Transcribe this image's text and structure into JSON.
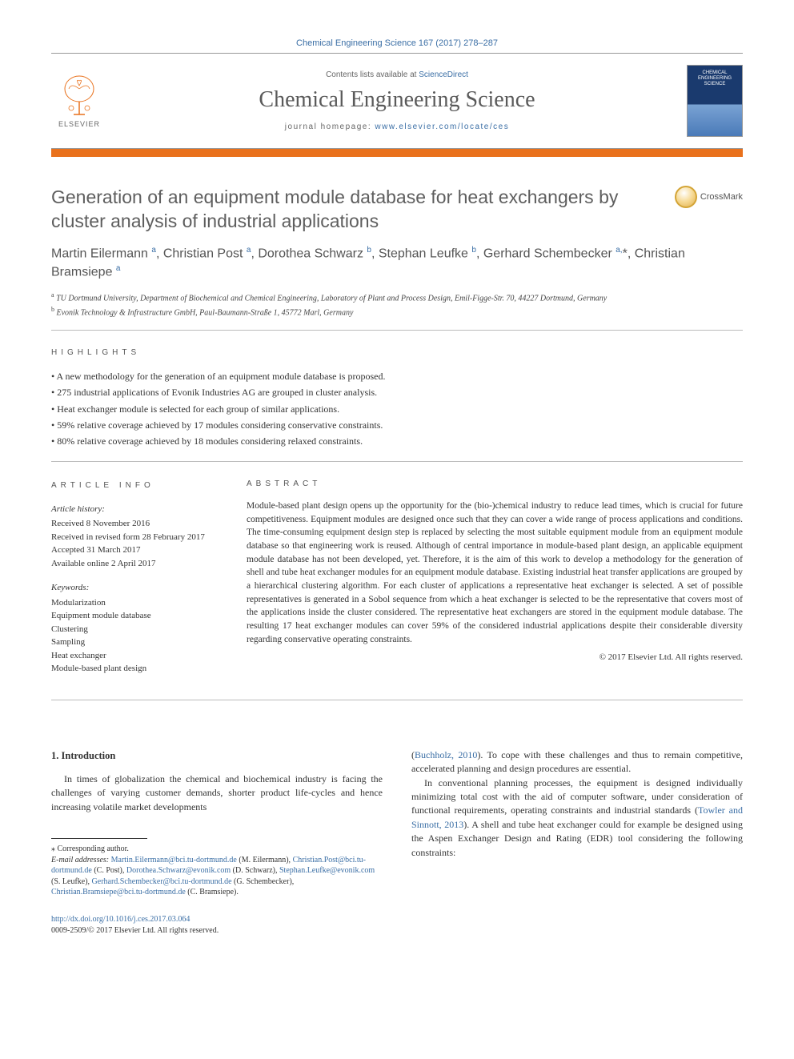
{
  "citation": "Chemical Engineering Science 167 (2017) 278–287",
  "header": {
    "contents_prefix": "Contents lists available at ",
    "contents_link": "ScienceDirect",
    "journal_name": "Chemical Engineering Science",
    "homepage_prefix": "journal homepage: ",
    "homepage_url": "www.elsevier.com/locate/ces",
    "elsevier_label": "ELSEVIER",
    "cover_text": "CHEMICAL ENGINEERING SCIENCE"
  },
  "crossmark_label": "CrossMark",
  "title": "Generation of an equipment module database for heat exchangers by cluster analysis of industrial applications",
  "authors_html": "Martin Eilermann <sup>a</sup>, Christian Post <sup>a</sup>, Dorothea Schwarz <sup>b</sup>, Stephan Leufke <sup>b</sup>, Gerhard Schembecker <sup>a,</sup><span class='star'>*</span>, Christian Bramsiepe <sup>a</sup>",
  "affiliations": {
    "a": "TU Dortmund University, Department of Biochemical and Chemical Engineering, Laboratory of Plant and Process Design, Emil-Figge-Str. 70, 44227 Dortmund, Germany",
    "b": "Evonik Technology & Infrastructure GmbH, Paul-Baumann-Straße 1, 45772 Marl, Germany"
  },
  "labels": {
    "highlights": "highlights",
    "article_info": "article info",
    "abstract": "abstract"
  },
  "highlights": [
    "A new methodology for the generation of an equipment module database is proposed.",
    "275 industrial applications of Evonik Industries AG are grouped in cluster analysis.",
    "Heat exchanger module is selected for each group of similar applications.",
    "59% relative coverage achieved by 17 modules considering conservative constraints.",
    "80% relative coverage achieved by 18 modules considering relaxed constraints."
  ],
  "article_info": {
    "history_label": "Article history:",
    "history": [
      "Received 8 November 2016",
      "Received in revised form 28 February 2017",
      "Accepted 31 March 2017",
      "Available online 2 April 2017"
    ],
    "keywords_label": "Keywords:",
    "keywords": [
      "Modularization",
      "Equipment module database",
      "Clustering",
      "Sampling",
      "Heat exchanger",
      "Module-based plant design"
    ]
  },
  "abstract": "Module-based plant design opens up the opportunity for the (bio-)chemical industry to reduce lead times, which is crucial for future competitiveness. Equipment modules are designed once such that they can cover a wide range of process applications and conditions. The time-consuming equipment design step is replaced by selecting the most suitable equipment module from an equipment module database so that engineering work is reused. Although of central importance in module-based plant design, an applicable equipment module database has not been developed, yet. Therefore, it is the aim of this work to develop a methodology for the generation of shell and tube heat exchanger modules for an equipment module database. Existing industrial heat transfer applications are grouped by a hierarchical clustering algorithm. For each cluster of applications a representative heat exchanger is selected. A set of possible representatives is generated in a Sobol sequence from which a heat exchanger is selected to be the representative that covers most of the applications inside the cluster considered. The representative heat exchangers are stored in the equipment module database. The resulting 17 heat exchanger modules can cover 59% of the considered industrial applications despite their considerable diversity regarding conservative operating constraints.",
  "copyright": "© 2017 Elsevier Ltd. All rights reserved.",
  "body": {
    "intro_heading": "1. Introduction",
    "left_p1": "In times of globalization the chemical and biochemical industry is facing the challenges of varying customer demands, shorter product life-cycles and hence increasing volatile market developments",
    "right_p1_a": "(",
    "right_p1_cite": "Buchholz, 2010",
    "right_p1_b": "). To cope with these challenges and thus to remain competitive, accelerated planning and design procedures are essential.",
    "right_p2_a": "In conventional planning processes, the equipment is designed individually minimizing total cost with the aid of computer software, under consideration of functional requirements, operating constraints and industrial standards (",
    "right_p2_cite": "Towler and Sinnott, 2013",
    "right_p2_b": "). A shell and tube heat exchanger could for example be designed using the Aspen Exchanger Design and Rating (EDR) tool considering the following constraints:"
  },
  "footnotes": {
    "corresponding": "Corresponding author.",
    "email_label": "E-mail addresses:",
    "emails": [
      {
        "addr": "Martin.Eilermann@bci.tu-dortmund.de",
        "who": "(M. Eilermann)"
      },
      {
        "addr": "Christian.Post@bci.tu-dortmund.de",
        "who": "(C. Post)"
      },
      {
        "addr": "Dorothea.Schwarz@evonik.com",
        "who": "(D. Schwarz)"
      },
      {
        "addr": "Stephan.Leufke@evonik.com",
        "who": "(S. Leufke)"
      },
      {
        "addr": "Gerhard.Schembecker@bci.tu-dortmund.de",
        "who": "(G. Schembecker)"
      },
      {
        "addr": "Christian.Bramsiepe@bci.tu-dortmund.de",
        "who": "(C. Bramsiepe)"
      }
    ]
  },
  "doi": {
    "url": "http://dx.doi.org/10.1016/j.ces.2017.03.064",
    "issn_line": "0009-2509/© 2017 Elsevier Ltd. All rights reserved."
  },
  "colors": {
    "link": "#3a6ea5",
    "orange_bar": "#e9711c",
    "text_gray": "#5e5e5e"
  }
}
